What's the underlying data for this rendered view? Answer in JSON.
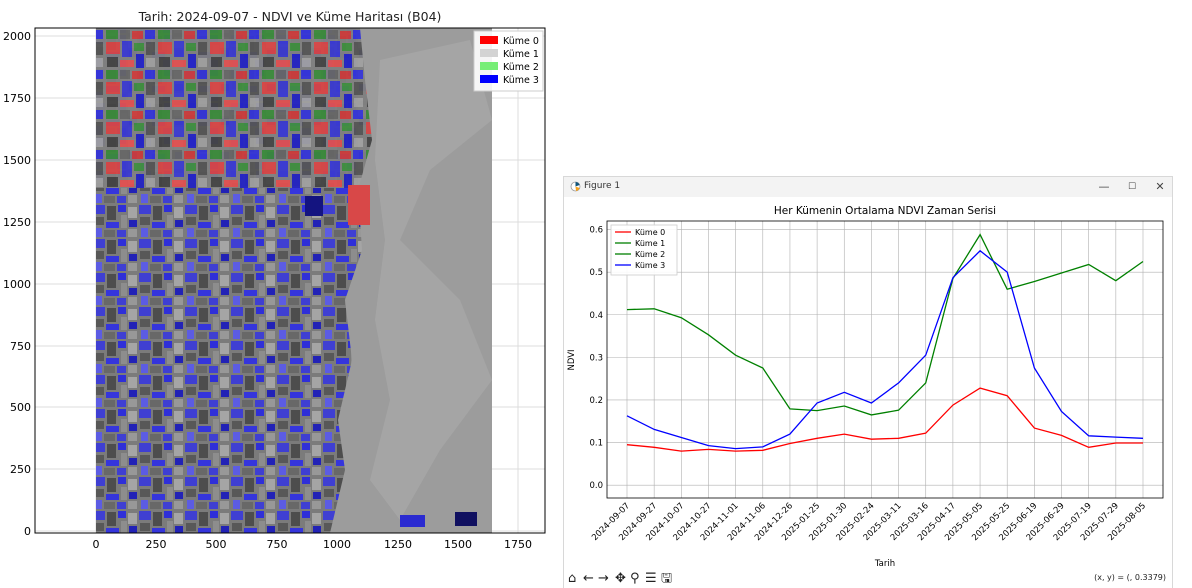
{
  "left_plot": {
    "title": "Tarih: 2024-09-07 - NDVI ve Küme Haritası (B04)",
    "x_ticks": [
      "0",
      "250",
      "500",
      "750",
      "1000",
      "1250",
      "1500",
      "1750"
    ],
    "y_ticks": [
      "0",
      "250",
      "500",
      "750",
      "1000",
      "1250",
      "1500",
      "1750",
      "2000"
    ],
    "legend": [
      {
        "label": "Küme 0",
        "color": "#ff0000"
      },
      {
        "label": "Küme 1",
        "color": "#d3d3d3"
      },
      {
        "label": "Küme 2",
        "color": "#77ee77"
      },
      {
        "label": "Küme 3",
        "color": "#0000ff"
      }
    ]
  },
  "window": {
    "title": "Figure 1",
    "minimize": "—",
    "maximize": "☐",
    "close": "✕"
  },
  "toolbar": {
    "home": "⌂",
    "back": "←",
    "forward": "→",
    "pan": "✥",
    "zoom": "⚲",
    "configure": "☰",
    "save": "🖫",
    "coordinates": "(x, y) = (, 0.3379)"
  },
  "chart_data": {
    "type": "line",
    "title": "Her Kümenin Ortalama NDVI Zaman Serisi",
    "xlabel": "Tarih",
    "ylabel": "NDVI",
    "ylim": [
      -0.03,
      0.62
    ],
    "yticks": [
      "0.0",
      "0.1",
      "0.2",
      "0.3",
      "0.4",
      "0.5",
      "0.6"
    ],
    "grid": true,
    "legend_position": "top-left",
    "categories": [
      "2024-09-07",
      "2024-09-27",
      "2024-10-07",
      "2024-10-27",
      "2024-11-01",
      "2024-11-06",
      "2024-12-26",
      "2025-01-25",
      "2025-01-30",
      "2025-02-24",
      "2025-03-11",
      "2025-03-16",
      "2025-04-17",
      "2025-05-05",
      "2025-05-25",
      "2025-06-19",
      "2025-06-29",
      "2025-07-19",
      "2025-07-29",
      "2025-08-05"
    ],
    "series": [
      {
        "name": "Küme 0",
        "color": "#ff0000",
        "values": [
          0.095,
          0.089,
          0.08,
          0.084,
          0.08,
          0.082,
          0.098,
          0.11,
          0.12,
          0.108,
          0.11,
          0.122,
          0.188,
          0.228,
          0.21,
          0.134,
          0.117,
          0.089,
          0.099,
          0.099
        ]
      },
      {
        "name": "Küme 1",
        "color": "#008000",
        "values": null
      },
      {
        "name": "Küme 2",
        "color": "#008000",
        "values": [
          0.412,
          0.414,
          0.393,
          0.353,
          0.305,
          0.275,
          0.179,
          0.175,
          0.186,
          0.165,
          0.176,
          0.24,
          0.485,
          0.588,
          0.46,
          0.478,
          0.498,
          0.518,
          0.48,
          0.525
        ]
      },
      {
        "name": "Küme 3",
        "color": "#0000ff",
        "values": [
          0.163,
          0.131,
          0.112,
          0.093,
          0.086,
          0.09,
          0.12,
          0.193,
          0.218,
          0.193,
          0.24,
          0.305,
          0.487,
          0.55,
          0.5,
          0.275,
          0.173,
          0.116,
          0.113,
          0.11
        ]
      }
    ]
  }
}
